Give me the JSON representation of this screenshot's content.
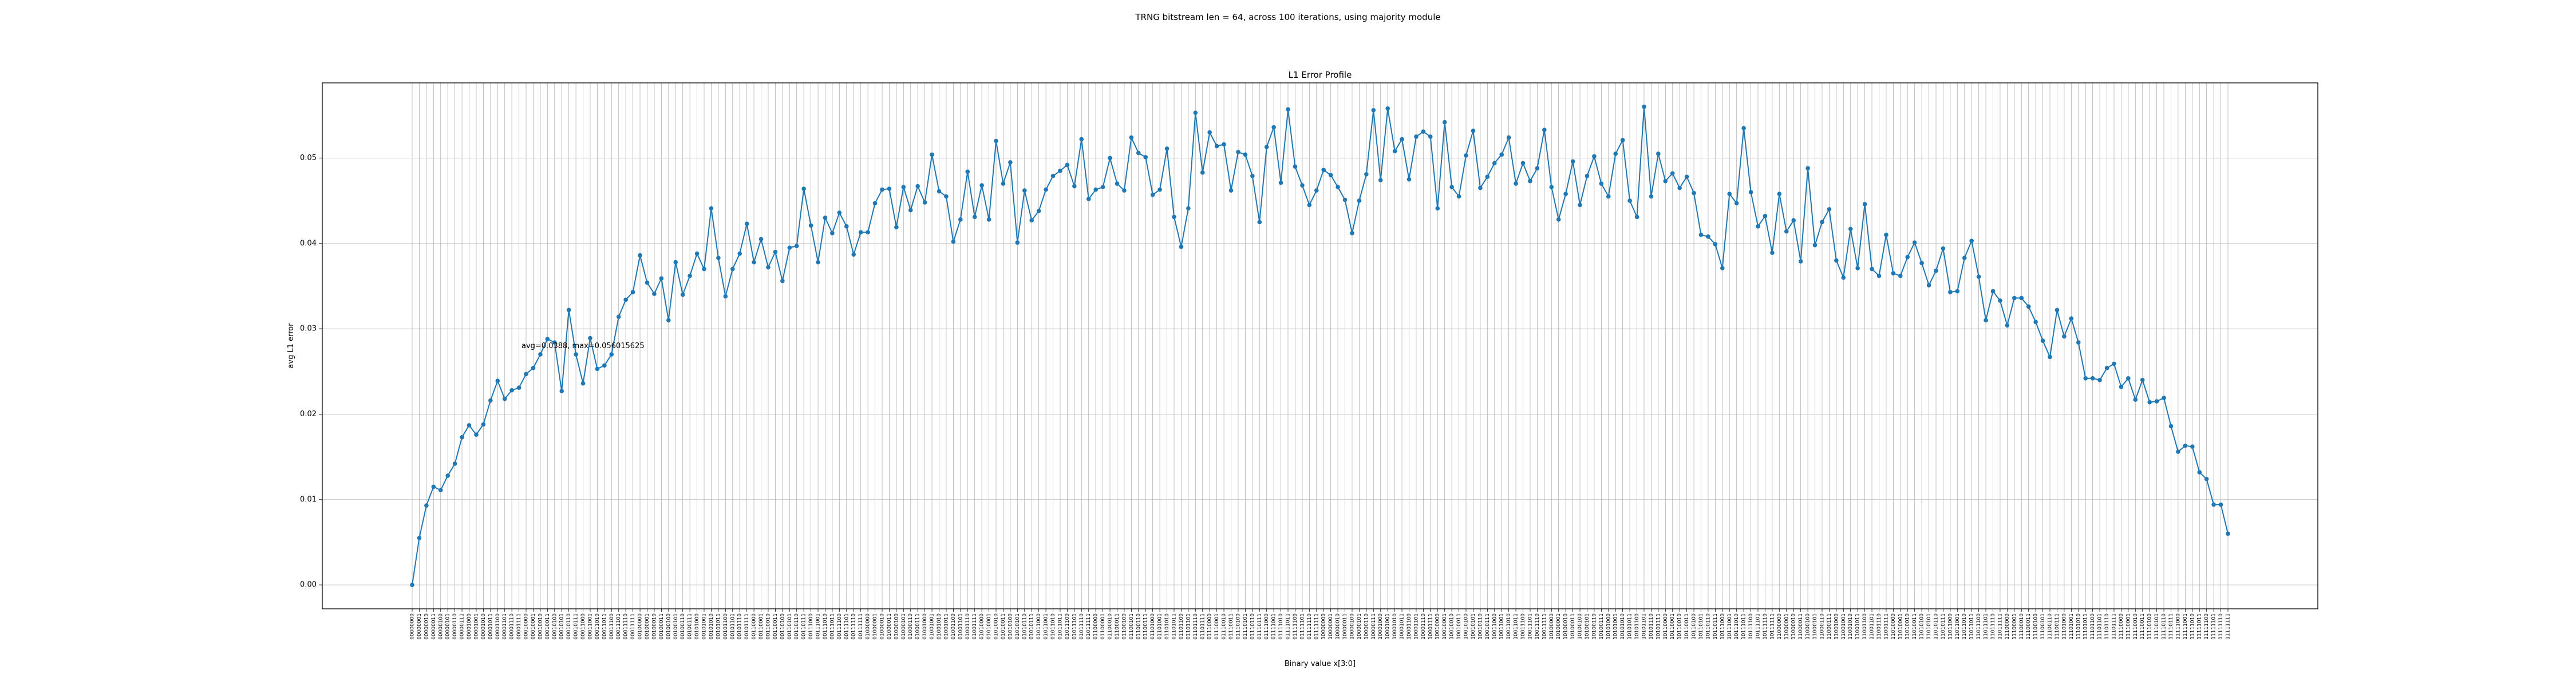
{
  "figure_title": "TRNG bitstream len = 64, across 100 iterations, using majority module",
  "chart_data": {
    "type": "line",
    "title": "L1 Error Profile",
    "xlabel": "Binary value x[3:0]",
    "ylabel": "avg L1 error",
    "ylim": [
      -0.0028,
      0.0588
    ],
    "yticks": [
      "0.00",
      "0.01",
      "0.02",
      "0.03",
      "0.04",
      "0.05"
    ],
    "ytick_values": [
      0,
      0.01,
      0.02,
      0.03,
      0.04,
      0.05
    ],
    "grid": true,
    "marker": "circle",
    "color": "#1f77b4",
    "annotation": "avg=0.0388, max=0.056015625",
    "x_categories": "256 binary tick labels 00000000 … 11111111 (generated in script)",
    "values": [
      0.0,
      0.0055,
      0.0093,
      0.0115,
      0.0111,
      0.0128,
      0.0142,
      0.0173,
      0.0187,
      0.0176,
      0.0188,
      0.0216,
      0.0239,
      0.0218,
      0.0228,
      0.0231,
      0.0247,
      0.0254,
      0.027,
      0.0288,
      0.0284,
      0.0227,
      0.0322,
      0.027,
      0.0236,
      0.0289,
      0.0253,
      0.0257,
      0.027,
      0.0314,
      0.0334,
      0.0343,
      0.0386,
      0.0354,
      0.0341,
      0.0359,
      0.031,
      0.0378,
      0.034,
      0.0362,
      0.0388,
      0.037,
      0.0441,
      0.0383,
      0.0338,
      0.037,
      0.0388,
      0.0423,
      0.0378,
      0.0405,
      0.0372,
      0.039,
      0.0356,
      0.0395,
      0.0397,
      0.0464,
      0.0421,
      0.0378,
      0.043,
      0.0412,
      0.0436,
      0.042,
      0.0387,
      0.0413,
      0.0413,
      0.0447,
      0.0463,
      0.0464,
      0.0419,
      0.0466,
      0.0439,
      0.0467,
      0.0448,
      0.0504,
      0.0461,
      0.0455,
      0.0402,
      0.0428,
      0.0484,
      0.0431,
      0.0468,
      0.0428,
      0.052,
      0.047,
      0.0495,
      0.0401,
      0.0462,
      0.0427,
      0.0438,
      0.0463,
      0.0479,
      0.0485,
      0.0492,
      0.0467,
      0.0522,
      0.0452,
      0.0463,
      0.0466,
      0.05,
      0.047,
      0.0462,
      0.0524,
      0.0506,
      0.0501,
      0.0457,
      0.0463,
      0.0511,
      0.0431,
      0.0396,
      0.0441,
      0.0553,
      0.0483,
      0.053,
      0.0514,
      0.0516,
      0.0462,
      0.0507,
      0.0504,
      0.0479,
      0.0425,
      0.0513,
      0.0536,
      0.0471,
      0.0557,
      0.049,
      0.0468,
      0.0445,
      0.0462,
      0.0486,
      0.048,
      0.0466,
      0.0451,
      0.0412,
      0.045,
      0.0481,
      0.0556,
      0.0474,
      0.0558,
      0.0508,
      0.0522,
      0.0475,
      0.0525,
      0.0531,
      0.0525,
      0.0441,
      0.0542,
      0.0466,
      0.0455,
      0.0503,
      0.0532,
      0.0465,
      0.0478,
      0.0494,
      0.0504,
      0.0524,
      0.047,
      0.0494,
      0.0473,
      0.0488,
      0.0533,
      0.0466,
      0.0428,
      0.0458,
      0.0496,
      0.0445,
      0.0479,
      0.0502,
      0.047,
      0.0455,
      0.0505,
      0.0521,
      0.045,
      0.0431,
      0.056,
      0.0455,
      0.0505,
      0.0473,
      0.0482,
      0.0465,
      0.0478,
      0.0459,
      0.041,
      0.0408,
      0.0399,
      0.0371,
      0.0458,
      0.0447,
      0.0535,
      0.046,
      0.042,
      0.0432,
      0.0389,
      0.0458,
      0.0414,
      0.0427,
      0.0379,
      0.0488,
      0.0398,
      0.0425,
      0.044,
      0.038,
      0.036,
      0.0417,
      0.0371,
      0.0446,
      0.037,
      0.0362,
      0.041,
      0.0365,
      0.0362,
      0.0384,
      0.0401,
      0.0377,
      0.0351,
      0.0368,
      0.0394,
      0.0343,
      0.0344,
      0.0383,
      0.0403,
      0.0361,
      0.031,
      0.0344,
      0.0333,
      0.0304,
      0.0336,
      0.0336,
      0.0326,
      0.0308,
      0.0286,
      0.0267,
      0.0322,
      0.0291,
      0.0312,
      0.0284,
      0.0242,
      0.0242,
      0.024,
      0.0254,
      0.0259,
      0.0232,
      0.0242,
      0.0217,
      0.024,
      0.0214,
      0.0215,
      0.0219,
      0.0186,
      0.0156,
      0.0163,
      0.0162,
      0.0132,
      0.0124,
      0.0094,
      0.0094,
      0.006
    ]
  }
}
